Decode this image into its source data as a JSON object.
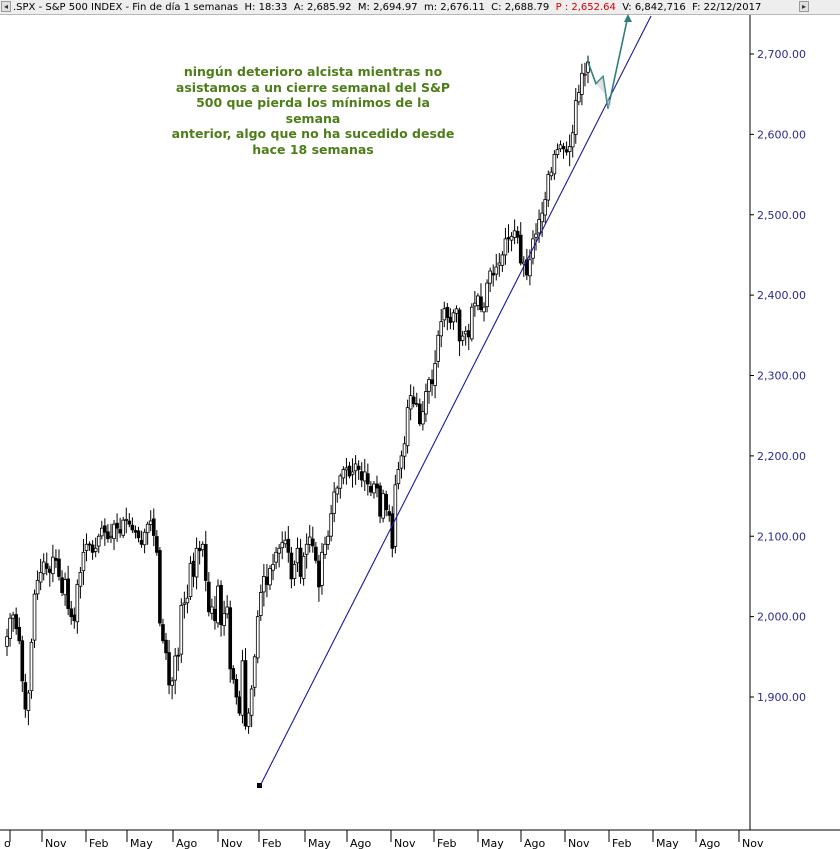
{
  "header": {
    "nav_left": "◂",
    "symbol": ".SPX - S&P 500 INDEX - Fin de día 1 semanas",
    "h_label": "H:",
    "h_value": "18:33",
    "a_label": "A:",
    "a_value": "2,685.92",
    "m_label": "M:",
    "m_value": "2,694.97",
    "mm_label": "m:",
    "mm_value": "2,676.11",
    "c_label": "C:",
    "c_value": "2,688.79",
    "p_label": "P :",
    "p_value": "2,652.64",
    "v_label": "V:",
    "v_value": "6,842,716",
    "f_label": "F:",
    "f_value": "22/12/2017",
    "nav_right": "▸"
  },
  "annotation": {
    "lines": [
      "ningún deterioro alcista mientras no",
      "asistamos a un cierre semanal del S&P",
      "500 que pierda los mínimos de la semana",
      "anterior, algo que no ha sucedido desde",
      "hace 18 semanas"
    ]
  },
  "colors": {
    "candles": "#000000",
    "trendline": "#1a1a9a",
    "projection": "#2e7f7a",
    "annotation": "#4e7e1a",
    "price_axis": "#2b2b8f"
  },
  "chart_data": {
    "type": "candlestick",
    "title": ".SPX - S&P 500 INDEX",
    "timeframe": "weekly",
    "ylim": [
      1800,
      2755
    ],
    "y_ticks": [
      "1,900.00",
      "2,000.00",
      "2,100.00",
      "2,200.00",
      "2,300.00",
      "2,400.00",
      "2,500.00",
      "2,600.00",
      "2,700.00"
    ],
    "x_ticks": [
      "Ago",
      "Nov",
      "Feb",
      "May",
      "Ago",
      "Nov",
      "Feb",
      "May",
      "Ago",
      "Nov",
      "Feb",
      "May",
      "Ago",
      "Nov",
      "Feb",
      "May",
      "Ago",
      "Nov"
    ],
    "x_tick_labels_visible": [
      "o",
      "Nov",
      "Feb",
      "May",
      "Ago",
      "Nov",
      "Feb",
      "May",
      "Ago",
      "Nov",
      "Feb",
      "May",
      "Ago",
      "Nov",
      "Feb",
      "May",
      "Ago",
      "Nov"
    ],
    "start": "2014-08",
    "closes": [
      1975,
      1998,
      2002,
      1985,
      1970,
      1920,
      1885,
      1905,
      1968,
      2028,
      2045,
      2055,
      2068,
      2060,
      2055,
      2074,
      2070,
      2050,
      2030,
      2046,
      2010,
      2000,
      1995,
      2040,
      2055,
      2080,
      2090,
      2090,
      2080,
      2085,
      2100,
      2110,
      2105,
      2097,
      2100,
      2115,
      2110,
      2104,
      2120,
      2121,
      2115,
      2108,
      2105,
      2098,
      2090,
      2105,
      2115,
      2119,
      2101,
      2080,
      1992,
      1970,
      1955,
      1915,
      1920,
      1951,
      1951,
      2014,
      2017,
      2023,
      2066,
      2050,
      2085,
      2082,
      2090,
      2045,
      2006,
      2012,
      1995,
      2038,
      1990,
      2004,
      2012,
      1935,
      1922,
      1900,
      1880,
      1945,
      1864,
      1880,
      1910,
      1950,
      2000,
      2030,
      2050,
      2040,
      2060,
      2065,
      2080,
      2085,
      2092,
      2095,
      2080,
      2047,
      2065,
      2085,
      2050,
      2075,
      2090,
      2099,
      2088,
      2070,
      2037,
      2080,
      2090,
      2100,
      2128,
      2155,
      2160,
      2175,
      2183,
      2185,
      2175,
      2180,
      2190,
      2183,
      2170,
      2180,
      2165,
      2155,
      2165,
      2160,
      2125,
      2153,
      2133,
      2126,
      2085,
      2164,
      2183,
      2200,
      2215,
      2260,
      2275,
      2265,
      2265,
      2240,
      2255,
      2280,
      2295,
      2290,
      2315,
      2350,
      2367,
      2383,
      2372,
      2366,
      2378,
      2383,
      2343,
      2349,
      2355,
      2348,
      2385,
      2390,
      2399,
      2382,
      2385,
      2415,
      2430,
      2425,
      2435,
      2440,
      2450,
      2470,
      2470,
      2473,
      2480,
      2472,
      2440,
      2441,
      2425,
      2444,
      2470,
      2476,
      2494,
      2502,
      2519,
      2550,
      2553,
      2575,
      2581,
      2587,
      2582,
      2578,
      2585,
      2602,
      2642,
      2652,
      2676,
      2675,
      2690
    ],
    "projection_path": [
      [
        2690,
        "start"
      ],
      [
        2663,
        "dip"
      ],
      [
        2672,
        "bounce"
      ],
      [
        2632,
        "low"
      ],
      [
        2755,
        "high"
      ]
    ],
    "trendline": {
      "from": [
        1810,
        "2016-02"
      ],
      "to": [
        2755,
        "2018-03"
      ],
      "color": "#1a1a9a"
    },
    "projection_color": "#2e7f7a",
    "grid": false
  }
}
